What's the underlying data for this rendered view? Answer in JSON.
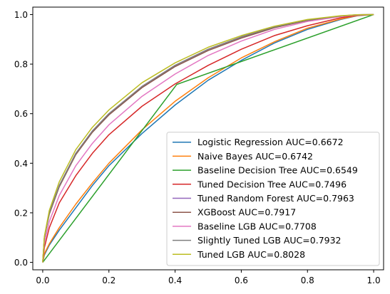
{
  "chart_data": {
    "type": "line",
    "title": "",
    "xlabel": "",
    "ylabel": "",
    "xlim": [
      -0.03,
      1.03
    ],
    "ylim": [
      -0.03,
      1.03
    ],
    "xticks": [
      "0.0",
      "0.2",
      "0.4",
      "0.6",
      "0.8",
      "1.0"
    ],
    "yticks": [
      "0.0",
      "0.2",
      "0.4",
      "0.6",
      "0.8",
      "1.0"
    ],
    "grid": false,
    "legend_position": "lower-right",
    "series": [
      {
        "name": "Logistic Regression AUC=0.6672",
        "color": "#1f77b4",
        "x": [
          0,
          0.005,
          0.02,
          0.05,
          0.1,
          0.15,
          0.2,
          0.3,
          0.4,
          0.5,
          0.6,
          0.7,
          0.8,
          0.9,
          0.95,
          1.0
        ],
        "y": [
          0,
          0.03,
          0.07,
          0.13,
          0.22,
          0.31,
          0.39,
          0.52,
          0.635,
          0.735,
          0.815,
          0.885,
          0.94,
          0.98,
          0.995,
          1.0
        ]
      },
      {
        "name": "Naive Bayes AUC=0.6742",
        "color": "#ff7f0e",
        "x": [
          0,
          0.005,
          0.02,
          0.05,
          0.1,
          0.15,
          0.2,
          0.3,
          0.4,
          0.5,
          0.6,
          0.7,
          0.8,
          0.9,
          0.95,
          1.0
        ],
        "y": [
          0,
          0.035,
          0.075,
          0.14,
          0.235,
          0.32,
          0.4,
          0.535,
          0.65,
          0.745,
          0.825,
          0.89,
          0.945,
          0.982,
          0.996,
          1.0
        ]
      },
      {
        "name": "Baseline Decision Tree AUC=0.6549",
        "color": "#2ca02c",
        "x": [
          0,
          0.405,
          1.0
        ],
        "y": [
          0,
          0.718,
          1.0
        ]
      },
      {
        "name": "Tuned Decision Tree AUC=0.7496",
        "color": "#d62728",
        "x": [
          0,
          0.005,
          0.02,
          0.05,
          0.1,
          0.15,
          0.2,
          0.3,
          0.4,
          0.5,
          0.6,
          0.7,
          0.8,
          0.9,
          0.95,
          1.0
        ],
        "y": [
          0,
          0.06,
          0.14,
          0.24,
          0.35,
          0.44,
          0.515,
          0.63,
          0.72,
          0.795,
          0.86,
          0.915,
          0.955,
          0.987,
          0.997,
          1.0
        ]
      },
      {
        "name": "Tuned Random Forest AUC=0.7963",
        "color": "#9467bd",
        "x": [
          0,
          0.005,
          0.02,
          0.05,
          0.1,
          0.15,
          0.2,
          0.3,
          0.4,
          0.5,
          0.6,
          0.7,
          0.8,
          0.9,
          0.95,
          1.0
        ],
        "y": [
          0,
          0.1,
          0.2,
          0.31,
          0.44,
          0.53,
          0.6,
          0.71,
          0.795,
          0.86,
          0.91,
          0.95,
          0.978,
          0.994,
          0.999,
          1.0
        ]
      },
      {
        "name": "XGBoost AUC=0.7917",
        "color": "#8c564b",
        "x": [
          0,
          0.005,
          0.02,
          0.05,
          0.1,
          0.15,
          0.2,
          0.3,
          0.4,
          0.5,
          0.6,
          0.7,
          0.8,
          0.9,
          0.95,
          1.0
        ],
        "y": [
          0,
          0.1,
          0.195,
          0.305,
          0.435,
          0.525,
          0.595,
          0.705,
          0.79,
          0.855,
          0.905,
          0.947,
          0.976,
          0.993,
          0.998,
          1.0
        ]
      },
      {
        "name": "Baseline LGB AUC=0.7708",
        "color": "#e377c2",
        "x": [
          0,
          0.005,
          0.02,
          0.05,
          0.1,
          0.15,
          0.2,
          0.3,
          0.4,
          0.5,
          0.6,
          0.7,
          0.8,
          0.9,
          0.95,
          1.0
        ],
        "y": [
          0,
          0.08,
          0.165,
          0.27,
          0.39,
          0.48,
          0.555,
          0.67,
          0.76,
          0.835,
          0.893,
          0.94,
          0.972,
          0.992,
          0.998,
          1.0
        ]
      },
      {
        "name": "Slightly Tuned LGB AUC=0.7932",
        "color": "#7f7f7f",
        "x": [
          0,
          0.005,
          0.02,
          0.05,
          0.1,
          0.15,
          0.2,
          0.3,
          0.4,
          0.5,
          0.6,
          0.7,
          0.8,
          0.9,
          0.95,
          1.0
        ],
        "y": [
          0,
          0.1,
          0.2,
          0.31,
          0.44,
          0.53,
          0.6,
          0.71,
          0.795,
          0.86,
          0.91,
          0.95,
          0.978,
          0.994,
          0.999,
          1.0
        ]
      },
      {
        "name": "Tuned LGB AUC=0.8028",
        "color": "#bcbd22",
        "x": [
          0,
          0.005,
          0.02,
          0.05,
          0.1,
          0.15,
          0.2,
          0.3,
          0.4,
          0.5,
          0.6,
          0.7,
          0.8,
          0.9,
          0.95,
          1.0
        ],
        "y": [
          0,
          0.105,
          0.21,
          0.325,
          0.455,
          0.545,
          0.615,
          0.725,
          0.805,
          0.868,
          0.915,
          0.953,
          0.98,
          0.995,
          0.999,
          1.0
        ]
      }
    ]
  }
}
